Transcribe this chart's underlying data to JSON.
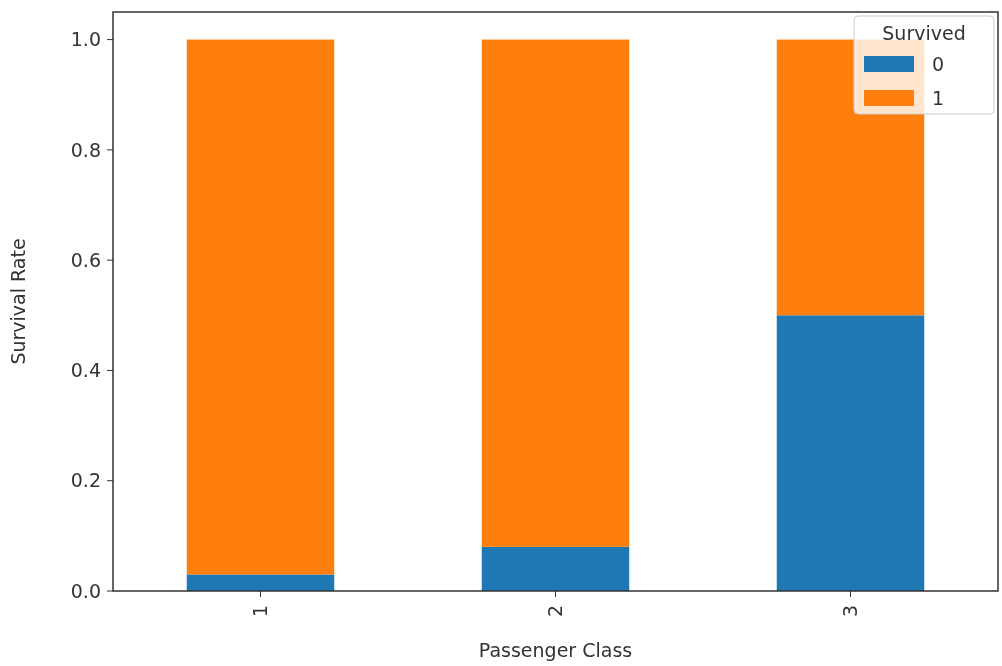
{
  "chart_data": {
    "type": "bar",
    "stacked": true,
    "xlabel": "Passenger Class",
    "ylabel": "Survival Rate",
    "legend_title": "Survived",
    "legend": "top right",
    "categories": [
      "1",
      "2",
      "3"
    ],
    "series": [
      {
        "name": "0",
        "color": "#1f77b4",
        "values": [
          0.03,
          0.08,
          0.5
        ]
      },
      {
        "name": "1",
        "color": "#ff7f0e",
        "values": [
          0.97,
          0.92,
          0.5
        ]
      }
    ],
    "ylim": [
      0,
      1.05
    ],
    "yticks": [
      {
        "value": 0,
        "label": "0.0"
      },
      {
        "value": 0.2,
        "label": "0.2"
      },
      {
        "value": 0.4,
        "label": "0.4"
      },
      {
        "value": 0.6,
        "label": "0.6"
      },
      {
        "value": 0.8,
        "label": "0.8"
      },
      {
        "value": 1,
        "label": "1.0"
      }
    ]
  }
}
